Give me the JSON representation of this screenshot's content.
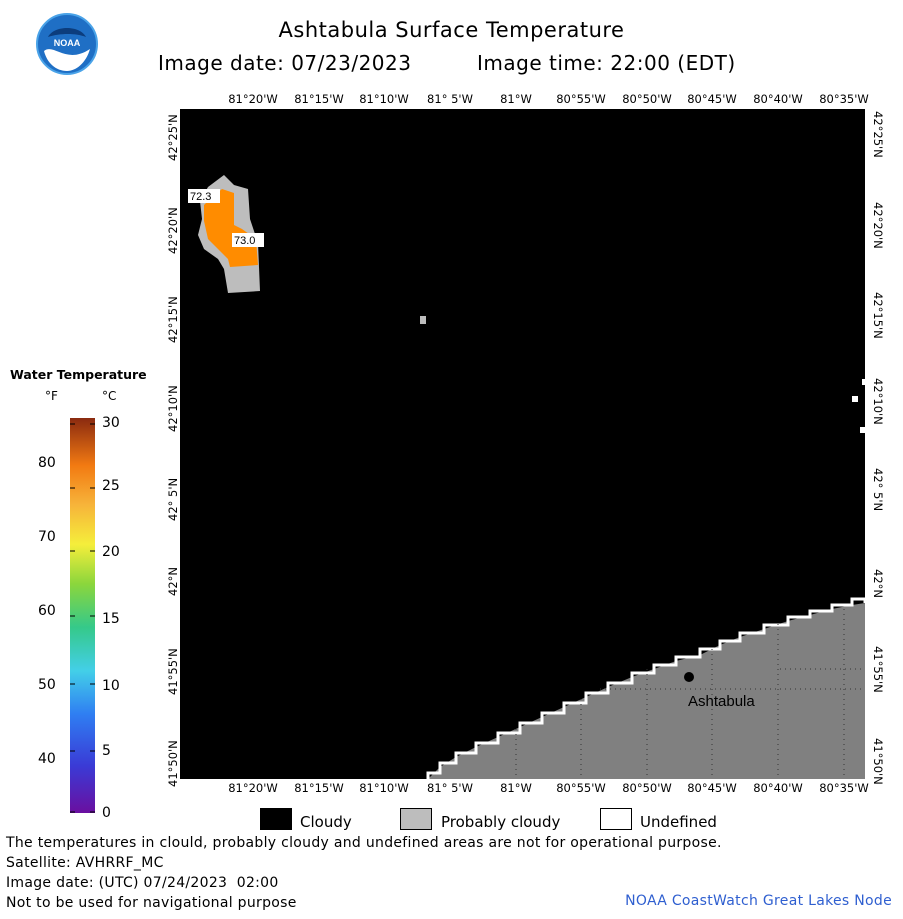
{
  "header": {
    "title": "Ashtabula Surface Temperature",
    "image_date": "Image date: 07/23/2023",
    "image_time": "Image time: 22:00 (EDT)",
    "logo_text": "NOAA"
  },
  "axes": {
    "lon_labels": [
      "81°20'W",
      "81°15'W",
      "81°10'W",
      "81° 5'W",
      "81°W",
      "80°55'W",
      "80°50'W",
      "80°45'W",
      "80°40'W",
      "80°35'W"
    ],
    "lat_labels": [
      "42°25'N",
      "42°20'N",
      "42°15'N",
      "42°10'N",
      "42° 5'N",
      "42°N",
      "41°55'N",
      "41°50'N"
    ]
  },
  "map": {
    "city_label": "Ashtabula",
    "temp_labels": [
      "72.3",
      "73.0"
    ],
    "colors": {
      "cloudy": "#000000",
      "probably_cloudy": "#bdbdbd",
      "land": "#808080",
      "water_warm": "#ff8c00"
    }
  },
  "legend": {
    "title": "Water Temperature",
    "unit_f": "°F",
    "unit_c": "°C",
    "f_ticks": [
      "80",
      "70",
      "60",
      "50",
      "40"
    ],
    "c_ticks": [
      "30",
      "25",
      "20",
      "15",
      "10",
      "5",
      "0"
    ],
    "scale_c_range": [
      0,
      30
    ]
  },
  "key": {
    "cloudy": "Cloudy",
    "probably_cloudy": "Probably cloudy",
    "undefined": "Undefined"
  },
  "footer": {
    "warning": "The temperatures in clould, probably cloudy and undefined areas are not for operational purpose.",
    "satellite": "Satellite: AVHRRF_MC",
    "utc_date": "Image date: (UTC) 07/24/2023  02:00",
    "nav_warning": "Not to be used for navigational purpose",
    "credit": "NOAA CoastWatch Great Lakes Node"
  }
}
